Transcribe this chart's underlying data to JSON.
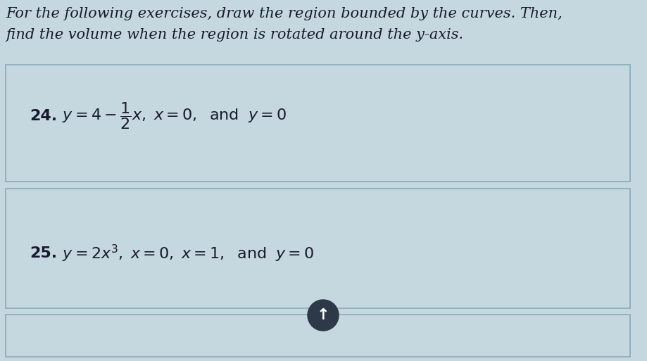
{
  "background_color": "#c5d8e0",
  "header_text_line1": "For the following exercises, draw the region bounded by the curves. Then,",
  "header_text_line2": "find the volume when the region is rotated around the y-axis.",
  "box1_number": "24.",
  "box2_number": "25.",
  "formula24": "$y = 4 - \\dfrac{1}{2}x, x = 0,\\;$ and $y = 0$",
  "formula25": "$y = 2x^3, x = 0, x = 1,\\;$ and $y = 0$",
  "box_bg_color": "#c5d8e0",
  "box_border_color": "#8aaab8",
  "text_color": "#1a1a2e",
  "header_fontsize": 15.0,
  "body_fontsize": 15.0,
  "arrow_circle_color": "#2d3848"
}
